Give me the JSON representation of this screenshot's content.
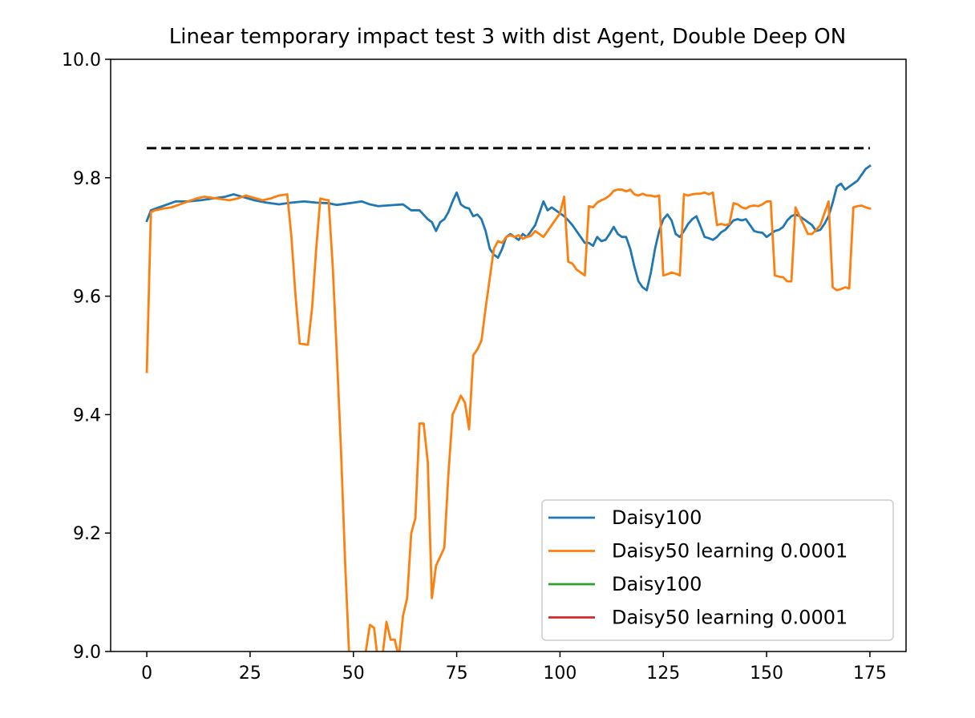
{
  "chart_data": {
    "type": "line",
    "title": "Linear temporary impact test 3 with dist Agent, Double Deep ON",
    "xlabel": "",
    "ylabel": "",
    "xlim": [
      -8.75,
      183.75
    ],
    "ylim": [
      9.0,
      10.0
    ],
    "x_ticks": [
      "0",
      "25",
      "50",
      "75",
      "100",
      "125",
      "150",
      "175"
    ],
    "y_ticks": [
      "9.0",
      "9.2",
      "9.4",
      "9.6",
      "9.8",
      "10.0"
    ],
    "grid": false,
    "legend_position": "lower right",
    "reference_line": {
      "y": 9.85,
      "x_start": 0,
      "x_end": 175,
      "color": "#000000",
      "style": "dashed"
    },
    "series": [
      {
        "name": "Daisy100",
        "color": "#1f77b4",
        "points": [
          [
            0,
            9.727
          ],
          [
            1,
            9.745
          ],
          [
            3,
            9.75
          ],
          [
            5,
            9.755
          ],
          [
            7,
            9.76
          ],
          [
            10,
            9.76
          ],
          [
            13,
            9.762
          ],
          [
            16,
            9.765
          ],
          [
            19,
            9.768
          ],
          [
            21,
            9.772
          ],
          [
            23,
            9.768
          ],
          [
            26,
            9.762
          ],
          [
            29,
            9.758
          ],
          [
            32,
            9.755
          ],
          [
            35,
            9.758
          ],
          [
            38,
            9.76
          ],
          [
            41,
            9.758
          ],
          [
            44,
            9.757
          ],
          [
            46,
            9.754
          ],
          [
            48,
            9.756
          ],
          [
            50,
            9.758
          ],
          [
            52,
            9.76
          ],
          [
            54,
            9.755
          ],
          [
            56,
            9.752
          ],
          [
            58,
            9.753
          ],
          [
            60,
            9.754
          ],
          [
            62,
            9.755
          ],
          [
            64,
            9.745
          ],
          [
            66,
            9.745
          ],
          [
            68,
            9.73
          ],
          [
            69,
            9.725
          ],
          [
            70,
            9.71
          ],
          [
            71,
            9.725
          ],
          [
            72,
            9.73
          ],
          [
            73,
            9.742
          ],
          [
            74,
            9.76
          ],
          [
            75,
            9.775
          ],
          [
            76,
            9.755
          ],
          [
            77,
            9.75
          ],
          [
            78,
            9.748
          ],
          [
            79,
            9.735
          ],
          [
            80,
            9.738
          ],
          [
            81,
            9.73
          ],
          [
            82,
            9.71
          ],
          [
            83,
            9.68
          ],
          [
            84,
            9.67
          ],
          [
            85,
            9.665
          ],
          [
            86,
            9.68
          ],
          [
            87,
            9.7
          ],
          [
            88,
            9.705
          ],
          [
            89,
            9.7
          ],
          [
            90,
            9.695
          ],
          [
            91,
            9.705
          ],
          [
            92,
            9.7
          ],
          [
            93,
            9.71
          ],
          [
            94,
            9.72
          ],
          [
            95,
            9.74
          ],
          [
            96,
            9.76
          ],
          [
            97,
            9.745
          ],
          [
            98,
            9.75
          ],
          [
            99,
            9.745
          ],
          [
            100,
            9.74
          ],
          [
            101,
            9.735
          ],
          [
            102,
            9.728
          ],
          [
            103,
            9.72
          ],
          [
            104,
            9.71
          ],
          [
            105,
            9.7
          ],
          [
            106,
            9.69
          ],
          [
            107,
            9.69
          ],
          [
            108,
            9.685
          ],
          [
            109,
            9.7
          ],
          [
            110,
            9.693
          ],
          [
            111,
            9.695
          ],
          [
            112,
            9.705
          ],
          [
            113,
            9.717
          ],
          [
            114,
            9.705
          ],
          [
            115,
            9.7
          ],
          [
            116,
            9.7
          ],
          [
            117,
            9.68
          ],
          [
            118,
            9.65
          ],
          [
            119,
            9.625
          ],
          [
            120,
            9.615
          ],
          [
            121,
            9.61
          ],
          [
            122,
            9.64
          ],
          [
            123,
            9.68
          ],
          [
            124,
            9.71
          ],
          [
            125,
            9.73
          ],
          [
            126,
            9.738
          ],
          [
            127,
            9.728
          ],
          [
            128,
            9.705
          ],
          [
            129,
            9.7
          ],
          [
            130,
            9.71
          ],
          [
            131,
            9.722
          ],
          [
            132,
            9.73
          ],
          [
            133,
            9.735
          ],
          [
            134,
            9.718
          ],
          [
            135,
            9.7
          ],
          [
            136,
            9.698
          ],
          [
            137,
            9.695
          ],
          [
            138,
            9.7
          ],
          [
            139,
            9.708
          ],
          [
            140,
            9.712
          ],
          [
            141,
            9.72
          ],
          [
            142,
            9.728
          ],
          [
            143,
            9.73
          ],
          [
            144,
            9.728
          ],
          [
            145,
            9.73
          ],
          [
            146,
            9.72
          ],
          [
            147,
            9.71
          ],
          [
            148,
            9.708
          ],
          [
            149,
            9.707
          ],
          [
            150,
            9.7
          ],
          [
            151,
            9.705
          ],
          [
            152,
            9.71
          ],
          [
            153,
            9.712
          ],
          [
            154,
            9.717
          ],
          [
            155,
            9.728
          ],
          [
            156,
            9.735
          ],
          [
            157,
            9.738
          ],
          [
            158,
            9.735
          ],
          [
            159,
            9.73
          ],
          [
            160,
            9.725
          ],
          [
            161,
            9.72
          ],
          [
            162,
            9.71
          ],
          [
            163,
            9.712
          ],
          [
            164,
            9.722
          ],
          [
            165,
            9.735
          ],
          [
            166,
            9.758
          ],
          [
            167,
            9.785
          ],
          [
            168,
            9.79
          ],
          [
            169,
            9.78
          ],
          [
            170,
            9.785
          ],
          [
            171,
            9.79
          ],
          [
            172,
            9.795
          ],
          [
            173,
            9.805
          ],
          [
            174,
            9.815
          ],
          [
            175,
            9.82
          ]
        ]
      },
      {
        "name": "Daisy50 learning 0.0001",
        "color": "#ff7f0e",
        "points": [
          [
            0,
            9.472
          ],
          [
            1,
            9.742
          ],
          [
            2,
            9.745
          ],
          [
            4,
            9.748
          ],
          [
            6,
            9.75
          ],
          [
            8,
            9.755
          ],
          [
            10,
            9.76
          ],
          [
            12,
            9.765
          ],
          [
            14,
            9.768
          ],
          [
            16,
            9.766
          ],
          [
            18,
            9.764
          ],
          [
            20,
            9.762
          ],
          [
            22,
            9.765
          ],
          [
            24,
            9.77
          ],
          [
            26,
            9.766
          ],
          [
            28,
            9.762
          ],
          [
            30,
            9.765
          ],
          [
            32,
            9.77
          ],
          [
            34,
            9.772
          ],
          [
            35,
            9.7
          ],
          [
            36,
            9.6
          ],
          [
            37,
            9.52
          ],
          [
            39,
            9.518
          ],
          [
            40,
            9.58
          ],
          [
            41,
            9.68
          ],
          [
            42,
            9.765
          ],
          [
            43,
            9.763
          ],
          [
            44,
            9.762
          ],
          [
            45,
            9.65
          ],
          [
            46,
            9.5
          ],
          [
            47,
            9.34
          ],
          [
            48,
            9.15
          ],
          [
            49,
            8.99
          ],
          [
            52,
            8.99
          ],
          [
            53,
            9.0
          ],
          [
            54,
            9.045
          ],
          [
            55,
            9.04
          ],
          [
            56,
            8.98
          ],
          [
            57,
            8.99
          ],
          [
            58,
            9.05
          ],
          [
            59,
            9.02
          ],
          [
            60,
            9.02
          ],
          [
            61,
            8.99
          ],
          [
            62,
            9.06
          ],
          [
            63,
            9.09
          ],
          [
            64,
            9.2
          ],
          [
            65,
            9.225
          ],
          [
            66,
            9.385
          ],
          [
            67,
            9.385
          ],
          [
            68,
            9.32
          ],
          [
            69,
            9.09
          ],
          [
            70,
            9.145
          ],
          [
            71,
            9.16
          ],
          [
            72,
            9.175
          ],
          [
            73,
            9.3
          ],
          [
            74,
            9.4
          ],
          [
            75,
            9.415
          ],
          [
            76,
            9.432
          ],
          [
            77,
            9.42
          ],
          [
            78,
            9.375
          ],
          [
            79,
            9.5
          ],
          [
            80,
            9.51
          ],
          [
            81,
            9.525
          ],
          [
            82,
            9.58
          ],
          [
            83,
            9.63
          ],
          [
            84,
            9.68
          ],
          [
            85,
            9.693
          ],
          [
            86,
            9.69
          ],
          [
            87,
            9.7
          ],
          [
            88,
            9.703
          ],
          [
            89,
            9.7
          ],
          [
            90,
            9.703
          ],
          [
            91,
            9.697
          ],
          [
            92,
            9.7
          ],
          [
            93,
            9.702
          ],
          [
            94,
            9.71
          ],
          [
            95,
            9.705
          ],
          [
            96,
            9.7
          ],
          [
            97,
            9.71
          ],
          [
            98,
            9.72
          ],
          [
            99,
            9.73
          ],
          [
            100,
            9.74
          ],
          [
            101,
            9.768
          ],
          [
            102,
            9.658
          ],
          [
            103,
            9.655
          ],
          [
            104,
            9.645
          ],
          [
            105,
            9.64
          ],
          [
            106,
            9.635
          ],
          [
            107,
            9.752
          ],
          [
            108,
            9.75
          ],
          [
            109,
            9.758
          ],
          [
            110,
            9.762
          ],
          [
            111,
            9.765
          ],
          [
            112,
            9.77
          ],
          [
            113,
            9.778
          ],
          [
            114,
            9.78
          ],
          [
            115,
            9.78
          ],
          [
            116,
            9.777
          ],
          [
            117,
            9.78
          ],
          [
            118,
            9.772
          ],
          [
            119,
            9.77
          ],
          [
            120,
            9.773
          ],
          [
            121,
            9.77
          ],
          [
            122,
            9.77
          ],
          [
            123,
            9.768
          ],
          [
            124,
            9.77
          ],
          [
            125,
            9.635
          ],
          [
            126,
            9.637
          ],
          [
            127,
            9.64
          ],
          [
            128,
            9.638
          ],
          [
            129,
            9.635
          ],
          [
            130,
            9.772
          ],
          [
            131,
            9.77
          ],
          [
            132,
            9.772
          ],
          [
            133,
            9.773
          ],
          [
            134,
            9.773
          ],
          [
            135,
            9.775
          ],
          [
            136,
            9.772
          ],
          [
            137,
            9.775
          ],
          [
            138,
            9.72
          ],
          [
            139,
            9.722
          ],
          [
            140,
            9.72
          ],
          [
            141,
            9.722
          ],
          [
            142,
            9.757
          ],
          [
            143,
            9.755
          ],
          [
            144,
            9.75
          ],
          [
            145,
            9.748
          ],
          [
            146,
            9.752
          ],
          [
            147,
            9.753
          ],
          [
            148,
            9.752
          ],
          [
            149,
            9.755
          ],
          [
            150,
            9.76
          ],
          [
            151,
            9.76
          ],
          [
            152,
            9.635
          ],
          [
            153,
            9.633
          ],
          [
            154,
            9.632
          ],
          [
            155,
            9.625
          ],
          [
            156,
            9.625
          ],
          [
            157,
            9.75
          ],
          [
            158,
            9.735
          ],
          [
            159,
            9.72
          ],
          [
            160,
            9.705
          ],
          [
            161,
            9.705
          ],
          [
            162,
            9.712
          ],
          [
            163,
            9.72
          ],
          [
            164,
            9.74
          ],
          [
            165,
            9.76
          ],
          [
            166,
            9.615
          ],
          [
            167,
            9.61
          ],
          [
            168,
            9.612
          ],
          [
            169,
            9.615
          ],
          [
            170,
            9.613
          ],
          [
            171,
            9.75
          ],
          [
            172,
            9.752
          ],
          [
            173,
            9.753
          ],
          [
            174,
            9.75
          ],
          [
            175,
            9.748
          ]
        ]
      },
      {
        "name": "Daisy100",
        "color": "#2ca02c",
        "points": []
      },
      {
        "name": "Daisy50 learning 0.0001",
        "color": "#d62728",
        "points": []
      }
    ]
  }
}
